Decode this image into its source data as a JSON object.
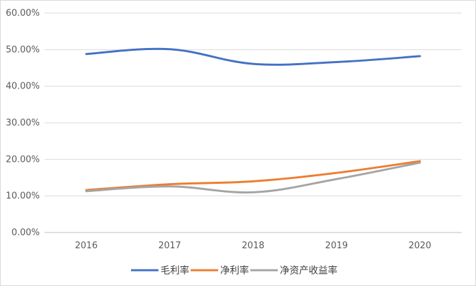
{
  "chart_data": {
    "type": "line",
    "title": "",
    "xlabel": "",
    "ylabel": "",
    "categories": [
      "2016",
      "2017",
      "2018",
      "2019",
      "2020"
    ],
    "ylim": [
      0,
      60
    ],
    "yticks": [
      0,
      10,
      20,
      30,
      40,
      50,
      60
    ],
    "ytick_labels": [
      "0.00%",
      "10.00%",
      "20.00%",
      "30.00%",
      "40.00%",
      "50.00%",
      "60.00%"
    ],
    "grid": "horizontal",
    "legend_position": "bottom",
    "series": [
      {
        "name": "毛利率",
        "color": "#4472c4",
        "values": [
          48.8,
          50.1,
          46.1,
          46.6,
          48.2
        ]
      },
      {
        "name": "净利率",
        "color": "#ed7d31",
        "values": [
          11.6,
          13.2,
          14.0,
          16.3,
          19.5
        ]
      },
      {
        "name": "净资产收益率",
        "color": "#a5a5a5",
        "values": [
          11.3,
          12.6,
          11.0,
          14.6,
          19.1
        ]
      }
    ]
  }
}
